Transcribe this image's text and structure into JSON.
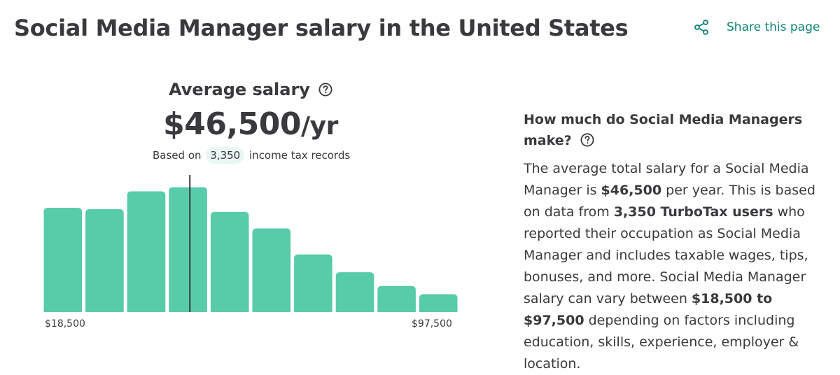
{
  "header": {
    "title": "Social Media Manager salary in the United States",
    "share_label": "Share this page",
    "share_icon": "share-icon",
    "accent_color": "#0d8378"
  },
  "average": {
    "label": "Average salary",
    "help_icon": "question-circle-icon",
    "amount": "$46,500",
    "unit": "/yr",
    "based_on_prefix": "Based on",
    "records_count": "3,350",
    "based_on_suffix": "income tax records"
  },
  "chart_data": {
    "type": "bar",
    "bar_color": "#58cba8",
    "values": [
      76,
      75,
      88,
      91,
      73,
      61,
      42,
      29,
      19,
      13
    ],
    "ylim": [
      0,
      100
    ],
    "xlim": [
      "$18,500",
      "$97,500"
    ],
    "average_marker_value": 46500,
    "x_range": [
      18500,
      97500
    ],
    "tick_labels": [
      "$18,500",
      "$97,500"
    ]
  },
  "side": {
    "heading": "How much do Social Media Managers make?",
    "help_icon": "question-circle-icon",
    "p1": "The average total salary for a Social Media Manager is ",
    "b1": "$46,500",
    "p2": " per year. This is based on data from ",
    "b2": "3,350 TurboTax users",
    "p3": " who reported their occupation as Social Media Manager and includes taxable wages, tips, bonuses, and more. Social Media Manager salary can vary between ",
    "b3": "$18,500 to $97,500",
    "p4": " depending on factors including education, skills, experience, employer & location."
  }
}
